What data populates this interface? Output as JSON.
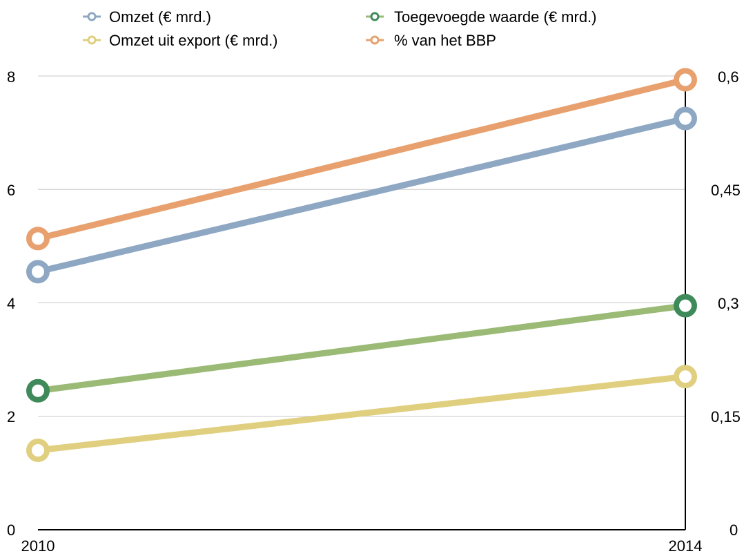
{
  "chart_data": {
    "type": "line",
    "categories": [
      "2010",
      "2014"
    ],
    "series": [
      {
        "name": "Omzet (€ mrd.)",
        "axis": "left",
        "values": [
          4.55,
          7.25
        ],
        "line_color": "#8ea7c3",
        "marker_color": "#8ea7c3"
      },
      {
        "name": "Toegevoegde waarde (€ mrd.)",
        "axis": "left",
        "values": [
          2.45,
          3.95
        ],
        "line_color": "#9aba76",
        "marker_color": "#3f8a5a"
      },
      {
        "name": "Omzet uit export (€ mrd.)",
        "axis": "left",
        "values": [
          1.4,
          2.7
        ],
        "line_color": "#e0cf7f",
        "marker_color": "#e0cf7f"
      },
      {
        "name": "% van het BBP",
        "axis": "right",
        "values": [
          0.385,
          0.595
        ],
        "line_color": "#e8a16e",
        "marker_color": "#e8a16e"
      }
    ],
    "y_left": {
      "ticks": [
        "0",
        "2",
        "4",
        "6",
        "8"
      ],
      "ylim": [
        0,
        8
      ]
    },
    "y_right": {
      "ticks": [
        "0",
        "0,15",
        "0,3",
        "0,45",
        "0,6"
      ],
      "ylim": [
        0,
        0.6
      ]
    },
    "grid": true,
    "legend_position": "top"
  }
}
